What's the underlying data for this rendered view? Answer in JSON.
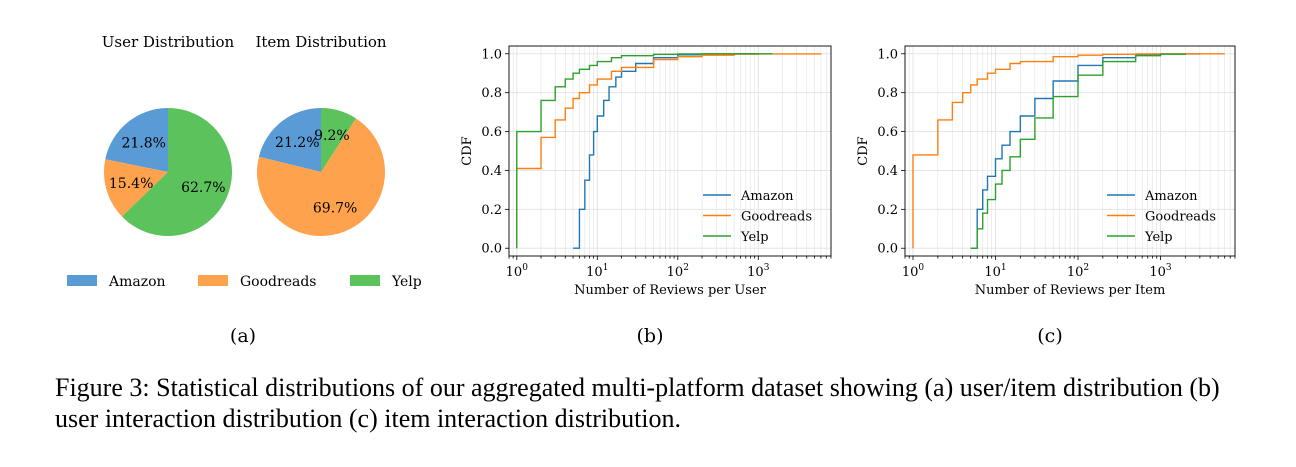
{
  "figure": {
    "caption": "Figure 3: Statistical distributions of our aggregated multi-platform dataset showing (a) user/item distribution (b) user interaction distribution (c) item interaction distribution.",
    "panel_labels": [
      "(a)",
      "(b)",
      "(c)"
    ]
  },
  "colors": {
    "Amazon": "#1f77b4",
    "Goodreads": "#ff7f0e",
    "Yelp": "#2ca02c"
  },
  "chart_data": [
    {
      "type": "pie",
      "panel": "(a)",
      "titles": [
        "User Distribution",
        "Item Distribution"
      ],
      "legend": [
        "Amazon",
        "Goodreads",
        "Yelp"
      ],
      "legend_colors": [
        "#5b9bd5",
        "#ffa24d",
        "#5cc25c"
      ],
      "legend_position": "bottom",
      "pies": [
        {
          "title": "User Distribution",
          "labels": [
            "Amazon",
            "Goodreads",
            "Yelp"
          ],
          "values": [
            21.8,
            15.4,
            62.7
          ],
          "value_labels": [
            "21.8%",
            "15.4%",
            "62.7%"
          ]
        },
        {
          "title": "Item Distribution",
          "labels": [
            "Amazon",
            "Goodreads",
            "Yelp"
          ],
          "values": [
            21.2,
            69.7,
            9.2
          ],
          "value_labels": [
            "21.2%",
            "69.7%",
            "9.2%"
          ]
        }
      ]
    },
    {
      "type": "line",
      "panel": "(b)",
      "xlabel": "Number of Reviews per User",
      "ylabel": "CDF",
      "xscale": "log",
      "xlim": [
        0.8,
        8000
      ],
      "ylim": [
        -0.04,
        1.04
      ],
      "yticks": [
        "0.0",
        "0.2",
        "0.4",
        "0.6",
        "0.8",
        "1.0"
      ],
      "xticks": [
        "10^0",
        "10^1",
        "10^2",
        "10^3"
      ],
      "grid": true,
      "legend_position": "lower-right",
      "series": [
        {
          "name": "Amazon",
          "x": [
            5,
            6,
            7,
            8,
            9,
            10,
            12,
            14,
            17,
            20,
            30,
            50,
            100,
            200,
            500,
            1000
          ],
          "y": [
            0.0,
            0.2,
            0.35,
            0.48,
            0.6,
            0.68,
            0.76,
            0.83,
            0.88,
            0.91,
            0.95,
            0.98,
            0.995,
            0.999,
            1.0,
            1.0
          ]
        },
        {
          "name": "Goodreads",
          "x": [
            1,
            2,
            3,
            4,
            5,
            6,
            8,
            10,
            15,
            20,
            50,
            100,
            200,
            500,
            1000,
            6000
          ],
          "y": [
            0.41,
            0.57,
            0.66,
            0.72,
            0.77,
            0.8,
            0.84,
            0.87,
            0.91,
            0.93,
            0.97,
            0.985,
            0.993,
            0.998,
            0.999,
            1.0
          ]
        },
        {
          "name": "Yelp",
          "x": [
            1,
            2,
            3,
            4,
            5,
            6,
            8,
            10,
            15,
            20,
            50,
            100,
            200,
            500,
            1000,
            1500
          ],
          "y": [
            0.6,
            0.76,
            0.83,
            0.87,
            0.9,
            0.92,
            0.94,
            0.96,
            0.98,
            0.99,
            0.997,
            0.999,
            1.0,
            1.0,
            1.0,
            1.0
          ]
        }
      ]
    },
    {
      "type": "line",
      "panel": "(c)",
      "xlabel": "Number of Reviews per Item",
      "ylabel": "CDF",
      "xscale": "log",
      "xlim": [
        0.8,
        8000
      ],
      "ylim": [
        -0.04,
        1.04
      ],
      "yticks": [
        "0.0",
        "0.2",
        "0.4",
        "0.6",
        "0.8",
        "1.0"
      ],
      "xticks": [
        "10^0",
        "10^1",
        "10^2",
        "10^3"
      ],
      "grid": true,
      "legend_position": "lower-right",
      "series": [
        {
          "name": "Amazon",
          "x": [
            5,
            6,
            7,
            8,
            10,
            12,
            15,
            20,
            30,
            50,
            100,
            200,
            500,
            1000,
            3000
          ],
          "y": [
            0.0,
            0.2,
            0.3,
            0.37,
            0.46,
            0.53,
            0.6,
            0.68,
            0.77,
            0.86,
            0.94,
            0.98,
            0.995,
            0.999,
            1.0
          ]
        },
        {
          "name": "Goodreads",
          "x": [
            1,
            2,
            3,
            4,
            5,
            6,
            8,
            10,
            15,
            20,
            50,
            100,
            200,
            500,
            1000,
            6000
          ],
          "y": [
            0.48,
            0.66,
            0.75,
            0.8,
            0.84,
            0.87,
            0.9,
            0.92,
            0.95,
            0.96,
            0.985,
            0.993,
            0.997,
            0.999,
            1.0,
            1.0
          ]
        },
        {
          "name": "Yelp",
          "x": [
            5,
            6,
            7,
            8,
            10,
            12,
            15,
            20,
            30,
            50,
            100,
            200,
            500,
            1000,
            2000
          ],
          "y": [
            0.0,
            0.1,
            0.18,
            0.25,
            0.33,
            0.4,
            0.47,
            0.56,
            0.67,
            0.78,
            0.89,
            0.96,
            0.99,
            0.998,
            1.0
          ]
        }
      ]
    }
  ]
}
